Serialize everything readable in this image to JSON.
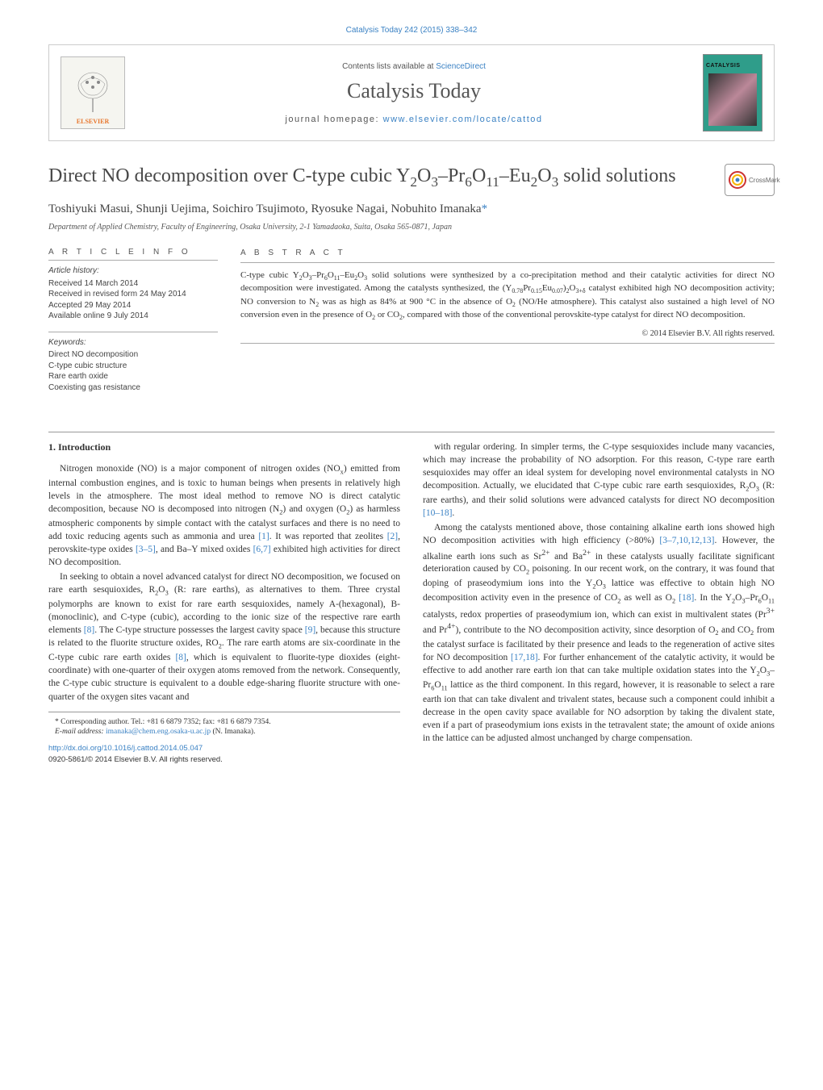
{
  "top_citation": "Catalysis Today 242 (2015) 338–342",
  "header": {
    "contents_prefix": "Contents lists available at ",
    "contents_link": "ScienceDirect",
    "journal_name": "Catalysis Today",
    "homepage_prefix": "journal homepage: ",
    "homepage_link": "www.elsevier.com/locate/cattod",
    "elsevier_label": "ELSEVIER",
    "cover_title": "CATALYSIS"
  },
  "article": {
    "title_html": "Direct NO decomposition over C-type cubic Y<sub>2</sub>O<sub>3</sub>–Pr<sub>6</sub>O<sub>11</sub>–Eu<sub>2</sub>O<sub>3</sub> solid solutions",
    "crossmark": "CrossMark",
    "authors_html": "Toshiyuki Masui, Shunji Uejima, Soichiro Tsujimoto, Ryosuke Nagai, Nobuhito Imanaka<span class=\"ast\">*</span>",
    "affiliation": "Department of Applied Chemistry, Faculty of Engineering, Osaka University, 2-1 Yamadaoka, Suita, Osaka 565-0871, Japan"
  },
  "article_info": {
    "heading": "A R T I C L E   I N F O",
    "history_label": "Article history:",
    "history": [
      "Received 14 March 2014",
      "Received in revised form 24 May 2014",
      "Accepted 29 May 2014",
      "Available online 9 July 2014"
    ],
    "keywords_label": "Keywords:",
    "keywords": [
      "Direct NO decomposition",
      "C-type cubic structure",
      "Rare earth oxide",
      "Coexisting gas resistance"
    ]
  },
  "abstract": {
    "heading": "A B S T R A C T",
    "text_html": "C-type cubic Y<sub>2</sub>O<sub>3</sub>–Pr<sub>6</sub>O<sub>11</sub>–Eu<sub>2</sub>O<sub>3</sub> solid solutions were synthesized by a co-precipitation method and their catalytic activities for direct NO decomposition were investigated. Among the catalysts synthesized, the (Y<sub>0.78</sub>Pr<sub>0.15</sub>Eu<sub>0.07</sub>)<sub>2</sub>O<sub>3+δ</sub> catalyst exhibited high NO decomposition activity; NO conversion to N<sub>2</sub> was as high as 84% at 900 °C in the absence of O<sub>2</sub> (NO/He atmosphere). This catalyst also sustained a high level of NO conversion even in the presence of O<sub>2</sub> or CO<sub>2</sub>, compared with those of the conventional perovskite-type catalyst for direct NO decomposition.",
    "copyright": "© 2014 Elsevier B.V. All rights reserved."
  },
  "body": {
    "section_heading": "1. Introduction",
    "p1_html": "Nitrogen monoxide (NO) is a major component of nitrogen oxides (NO<sub>x</sub>) emitted from internal combustion engines, and is toxic to human beings when presents in relatively high levels in the atmosphere. The most ideal method to remove NO is direct catalytic decomposition, because NO is decomposed into nitrogen (N<sub>2</sub>) and oxygen (O<sub>2</sub>) as harmless atmospheric components by simple contact with the catalyst surfaces and there is no need to add toxic reducing agents such as ammonia and urea <a>[1]</a>. It was reported that zeolites <a>[2]</a>, perovskite-type oxides <a>[3–5]</a>, and Ba–Y mixed oxides <a>[6,7]</a> exhibited high activities for direct NO decomposition.",
    "p2_html": "In seeking to obtain a novel advanced catalyst for direct NO decomposition, we focused on rare earth sesquioxides, R<sub>2</sub>O<sub>3</sub> (R: rare earths), as alternatives to them. Three crystal polymorphs are known to exist for rare earth sesquioxides, namely A-(hexagonal), B-(monoclinic), and C-type (cubic), according to the ionic size of the respective rare earth elements <a>[8]</a>. The C-type structure possesses the largest cavity space <a>[9]</a>, because this structure is related to the fluorite structure oxides, RO<sub>2</sub>. The rare earth atoms are six-coordinate in the C-type cubic rare earth oxides <a>[8]</a>, which is equivalent to fluorite-type dioxides (eight-coordinate) with one-quarter of their oxygen atoms removed from the network. Consequently, the C-type cubic structure is equivalent to a double edge-sharing fluorite structure with one-quarter of the oxygen sites vacant and",
    "p3_html": "with regular ordering. In simpler terms, the C-type sesquioxides include many vacancies, which may increase the probability of NO adsorption. For this reason, C-type rare earth sesquioxides may offer an ideal system for developing novel environmental catalysts in NO decomposition. Actually, we elucidated that C-type cubic rare earth sesquioxides, R<sub>2</sub>O<sub>3</sub> (R: rare earths), and their solid solutions were advanced catalysts for direct NO decomposition <a>[10–18]</a>.",
    "p4_html": "Among the catalysts mentioned above, those containing alkaline earth ions showed high NO decomposition activities with high efficiency (&gt;80%) <a>[3–7,10,12,13]</a>. However, the alkaline earth ions such as Sr<sup>2+</sup> and Ba<sup>2+</sup> in these catalysts usually facilitate significant deterioration caused by CO<sub>2</sub> poisoning. In our recent work, on the contrary, it was found that doping of praseodymium ions into the Y<sub>2</sub>O<sub>3</sub> lattice was effective to obtain high NO decomposition activity even in the presence of CO<sub>2</sub> as well as O<sub>2</sub> <a>[18]</a>. In the Y<sub>2</sub>O<sub>3</sub>–Pr<sub>6</sub>O<sub>11</sub> catalysts, redox properties of praseodymium ion, which can exist in multivalent states (Pr<sup>3+</sup> and Pr<sup>4+</sup>), contribute to the NO decomposition activity, since desorption of O<sub>2</sub> and CO<sub>2</sub> from the catalyst surface is facilitated by their presence and leads to the regeneration of active sites for NO decomposition <a>[17,18]</a>. For further enhancement of the catalytic activity, it would be effective to add another rare earth ion that can take multiple oxidation states into the Y<sub>2</sub>O<sub>3</sub>–Pr<sub>6</sub>O<sub>11</sub> lattice as the third component. In this regard, however, it is reasonable to select a rare earth ion that can take divalent and trivalent states, because such a component could inhibit a decrease in the open cavity space available for NO adsorption by taking the divalent state, even if a part of praseodymium ions exists in the tetravalent state; the amount of oxide anions in the lattice can be adjusted almost unchanged by charge compensation."
  },
  "footnote": {
    "corr_html": "* Corresponding author. Tel.: +81 6 6879 7352; fax: +81 6 6879 7354.",
    "email_prefix": "E-mail address: ",
    "email_link": "imanaka@chem.eng.osaka-u.ac.jp",
    "email_suffix": " (N. Imanaka)."
  },
  "doi": {
    "link": "http://dx.doi.org/10.1016/j.cattod.2014.05.047",
    "issn_line": "0920-5861/© 2014 Elsevier B.V. All rights reserved."
  },
  "colors": {
    "link": "#3b82c4",
    "text": "#333333",
    "rule": "#999999",
    "elsevier_orange": "#e8772e",
    "cover_teal": "#2f9d8a"
  }
}
